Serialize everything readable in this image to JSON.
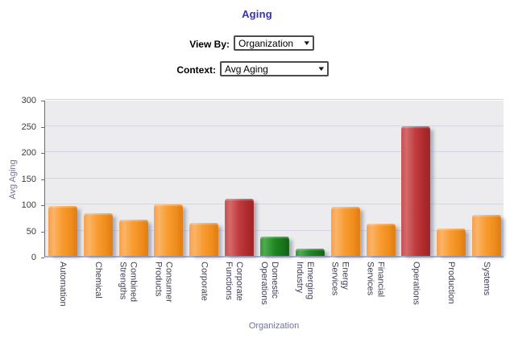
{
  "header": {
    "title": "Aging"
  },
  "controls": {
    "view_by_label": "View By:",
    "view_by_value": "Organization",
    "context_label": "Context:",
    "context_value": "Avg Aging",
    "dropdown_arrow_icon": "▼"
  },
  "chart_data": {
    "type": "bar",
    "title": "Aging",
    "xlabel": "Organization",
    "ylabel": "Avg Aging",
    "ylim": [
      0,
      300
    ],
    "ytick_step": 50,
    "grid": true,
    "legend": "none",
    "plot_background": "#ECECEE",
    "categories": [
      "Automation",
      "Chemical",
      "Combined Strengths",
      "Consumer Products",
      "Corporate",
      "Corporate Functions",
      "Domestic Operations",
      "Emerging Industry",
      "Energy Services",
      "Financial Services",
      "Operations",
      "Production",
      "Systems"
    ],
    "values": [
      96,
      81,
      69,
      98,
      63,
      110,
      37,
      14,
      94,
      62,
      248,
      52,
      79
    ],
    "bar_colors": [
      "orange",
      "orange",
      "orange",
      "orange",
      "orange",
      "red",
      "green",
      "green",
      "orange",
      "orange",
      "red",
      "orange",
      "orange"
    ],
    "palette": {
      "orange": "#F89C2F",
      "red": "#C23B3D",
      "green": "#1F8A24"
    }
  }
}
